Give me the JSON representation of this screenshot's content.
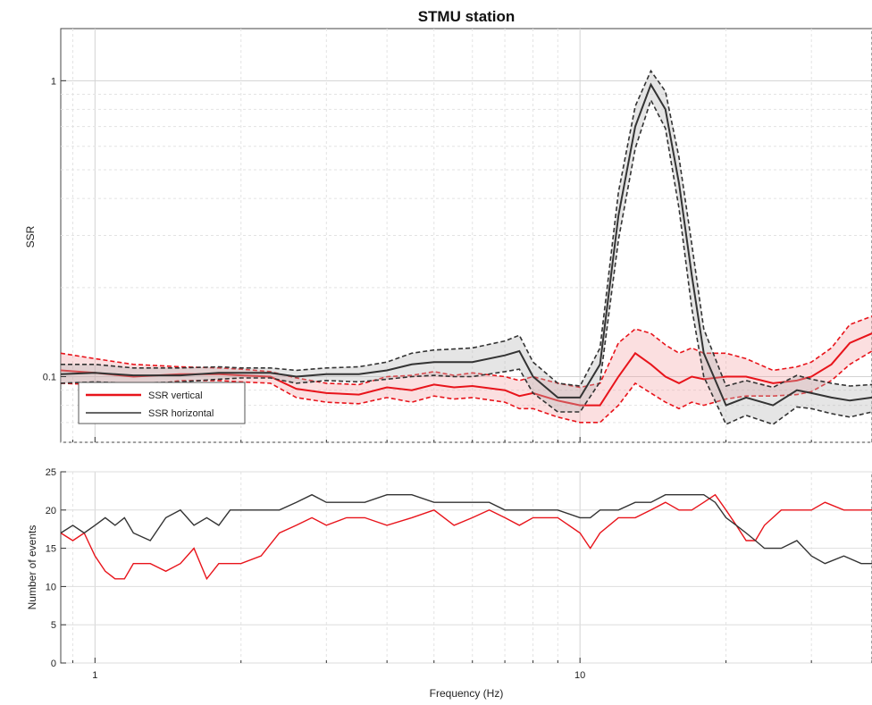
{
  "chart_data": [
    {
      "type": "line",
      "title": "STMU station",
      "xlabel": "",
      "ylabel": "SSR",
      "xscale": "log",
      "yscale": "log",
      "xlim": [
        0.85,
        40
      ],
      "ylim": [
        0.06,
        1.5
      ],
      "grid": true,
      "x_ticks": [
        1,
        10
      ],
      "x_tick_labels": [
        "1",
        "10"
      ],
      "y_ticks": [
        0.1,
        1
      ],
      "y_tick_labels": [
        "0.1",
        "1"
      ],
      "legend": {
        "placement": "bottom-left",
        "entries": [
          {
            "label": "SSR vertical",
            "color": "#e8141b"
          },
          {
            "label": "SSR horizontal",
            "color": "#333333"
          }
        ]
      },
      "x": [
        0.85,
        1.0,
        1.2,
        1.5,
        1.8,
        2.0,
        2.3,
        2.6,
        3.0,
        3.5,
        4.0,
        4.5,
        5.0,
        5.5,
        6.0,
        7.0,
        7.5,
        8.0,
        9.0,
        10.0,
        11.0,
        12.0,
        13.0,
        14.0,
        15.0,
        16.0,
        17.0,
        18.0,
        20.0,
        22.0,
        25.0,
        28.0,
        30.0,
        33.0,
        36.0,
        40.0
      ],
      "series": [
        {
          "name": "SSR vertical",
          "color": "#e8141b",
          "values": [
            0.105,
            0.103,
            0.1,
            0.102,
            0.102,
            0.101,
            0.1,
            0.091,
            0.088,
            0.087,
            0.092,
            0.09,
            0.094,
            0.092,
            0.093,
            0.09,
            0.086,
            0.088,
            0.083,
            0.08,
            0.08,
            0.1,
            0.12,
            0.11,
            0.1,
            0.095,
            0.1,
            0.098,
            0.1,
            0.1,
            0.095,
            0.097,
            0.1,
            0.11,
            0.13,
            0.14
          ],
          "spread_upper": [
            0.12,
            0.115,
            0.11,
            0.108,
            0.107,
            0.106,
            0.104,
            0.099,
            0.095,
            0.094,
            0.1,
            0.101,
            0.104,
            0.101,
            0.103,
            0.1,
            0.097,
            0.1,
            0.095,
            0.092,
            0.095,
            0.13,
            0.145,
            0.14,
            0.128,
            0.12,
            0.125,
            0.12,
            0.12,
            0.115,
            0.105,
            0.108,
            0.112,
            0.125,
            0.15,
            0.16
          ],
          "spread_lower": [
            0.095,
            0.094,
            0.092,
            0.097,
            0.097,
            0.096,
            0.095,
            0.085,
            0.082,
            0.081,
            0.085,
            0.082,
            0.086,
            0.084,
            0.085,
            0.082,
            0.078,
            0.078,
            0.073,
            0.07,
            0.07,
            0.08,
            0.095,
            0.088,
            0.082,
            0.078,
            0.082,
            0.08,
            0.084,
            0.086,
            0.086,
            0.087,
            0.089,
            0.097,
            0.11,
            0.122
          ]
        },
        {
          "name": "SSR horizontal",
          "color": "#333333",
          "values": [
            0.102,
            0.103,
            0.101,
            0.101,
            0.103,
            0.103,
            0.103,
            0.1,
            0.102,
            0.102,
            0.105,
            0.11,
            0.112,
            0.112,
            0.112,
            0.118,
            0.122,
            0.1,
            0.085,
            0.085,
            0.11,
            0.35,
            0.7,
            0.97,
            0.8,
            0.45,
            0.22,
            0.12,
            0.08,
            0.085,
            0.08,
            0.09,
            0.088,
            0.085,
            0.083,
            0.085
          ],
          "spread_upper": [
            0.11,
            0.11,
            0.107,
            0.107,
            0.108,
            0.107,
            0.107,
            0.105,
            0.107,
            0.108,
            0.112,
            0.12,
            0.123,
            0.124,
            0.125,
            0.132,
            0.138,
            0.112,
            0.095,
            0.093,
            0.125,
            0.42,
            0.82,
            1.08,
            0.92,
            0.55,
            0.28,
            0.145,
            0.093,
            0.097,
            0.092,
            0.101,
            0.098,
            0.095,
            0.093,
            0.094
          ],
          "spread_lower": [
            0.095,
            0.096,
            0.095,
            0.096,
            0.098,
            0.099,
            0.099,
            0.095,
            0.097,
            0.096,
            0.098,
            0.1,
            0.101,
            0.1,
            0.1,
            0.104,
            0.106,
            0.088,
            0.076,
            0.076,
            0.096,
            0.29,
            0.59,
            0.86,
            0.69,
            0.37,
            0.17,
            0.1,
            0.069,
            0.074,
            0.069,
            0.079,
            0.078,
            0.075,
            0.073,
            0.076
          ]
        }
      ]
    },
    {
      "type": "line",
      "title": "",
      "xlabel": "Frequency (Hz)",
      "ylabel": "Number of events",
      "xscale": "log",
      "xlim": [
        0.85,
        40
      ],
      "ylim": [
        0,
        25
      ],
      "grid": true,
      "x_ticks": [
        1,
        10
      ],
      "x_tick_labels": [
        "1",
        "10"
      ],
      "y_ticks": [
        0,
        5,
        10,
        15,
        20,
        25
      ],
      "y_tick_labels": [
        "0",
        "5",
        "10",
        "15",
        "20",
        "25"
      ],
      "x": [
        0.85,
        0.9,
        0.95,
        1.0,
        1.05,
        1.1,
        1.15,
        1.2,
        1.3,
        1.4,
        1.5,
        1.6,
        1.7,
        1.8,
        1.9,
        2.0,
        2.2,
        2.4,
        2.6,
        2.8,
        3.0,
        3.3,
        3.6,
        4.0,
        4.5,
        5.0,
        5.5,
        6.0,
        6.5,
        7.0,
        7.5,
        8.0,
        9.0,
        10.0,
        10.5,
        11.0,
        12.0,
        13.0,
        14.0,
        15.0,
        16.0,
        17.0,
        18.0,
        19.0,
        20.0,
        21.0,
        22.0,
        23.0,
        24.0,
        26.0,
        28.0,
        30.0,
        32.0,
        35.0,
        38.0,
        40.0
      ],
      "series": [
        {
          "name": "",
          "color": "#e8141b",
          "values": [
            17,
            16,
            17,
            14,
            12,
            11,
            11,
            13,
            13,
            12,
            13,
            15,
            11,
            13,
            13,
            13,
            14,
            17,
            18,
            19,
            18,
            19,
            19,
            18,
            19,
            20,
            18,
            19,
            20,
            19,
            18,
            19,
            19,
            17,
            15,
            17,
            19,
            19,
            20,
            21,
            20,
            20,
            21,
            22,
            20,
            18,
            16,
            16,
            18,
            20,
            20,
            20,
            21,
            20,
            20,
            20
          ]
        },
        {
          "name": "",
          "color": "#333333",
          "values": [
            17,
            18,
            17,
            18,
            19,
            18,
            19,
            17,
            16,
            19,
            20,
            18,
            19,
            18,
            20,
            20,
            20,
            20,
            21,
            22,
            21,
            21,
            21,
            22,
            22,
            21,
            21,
            21,
            21,
            20,
            20,
            20,
            20,
            19,
            19,
            20,
            20,
            21,
            21,
            22,
            22,
            22,
            22,
            21,
            19,
            18,
            17,
            16,
            15,
            15,
            16,
            14,
            13,
            14,
            13,
            13
          ]
        }
      ]
    }
  ]
}
